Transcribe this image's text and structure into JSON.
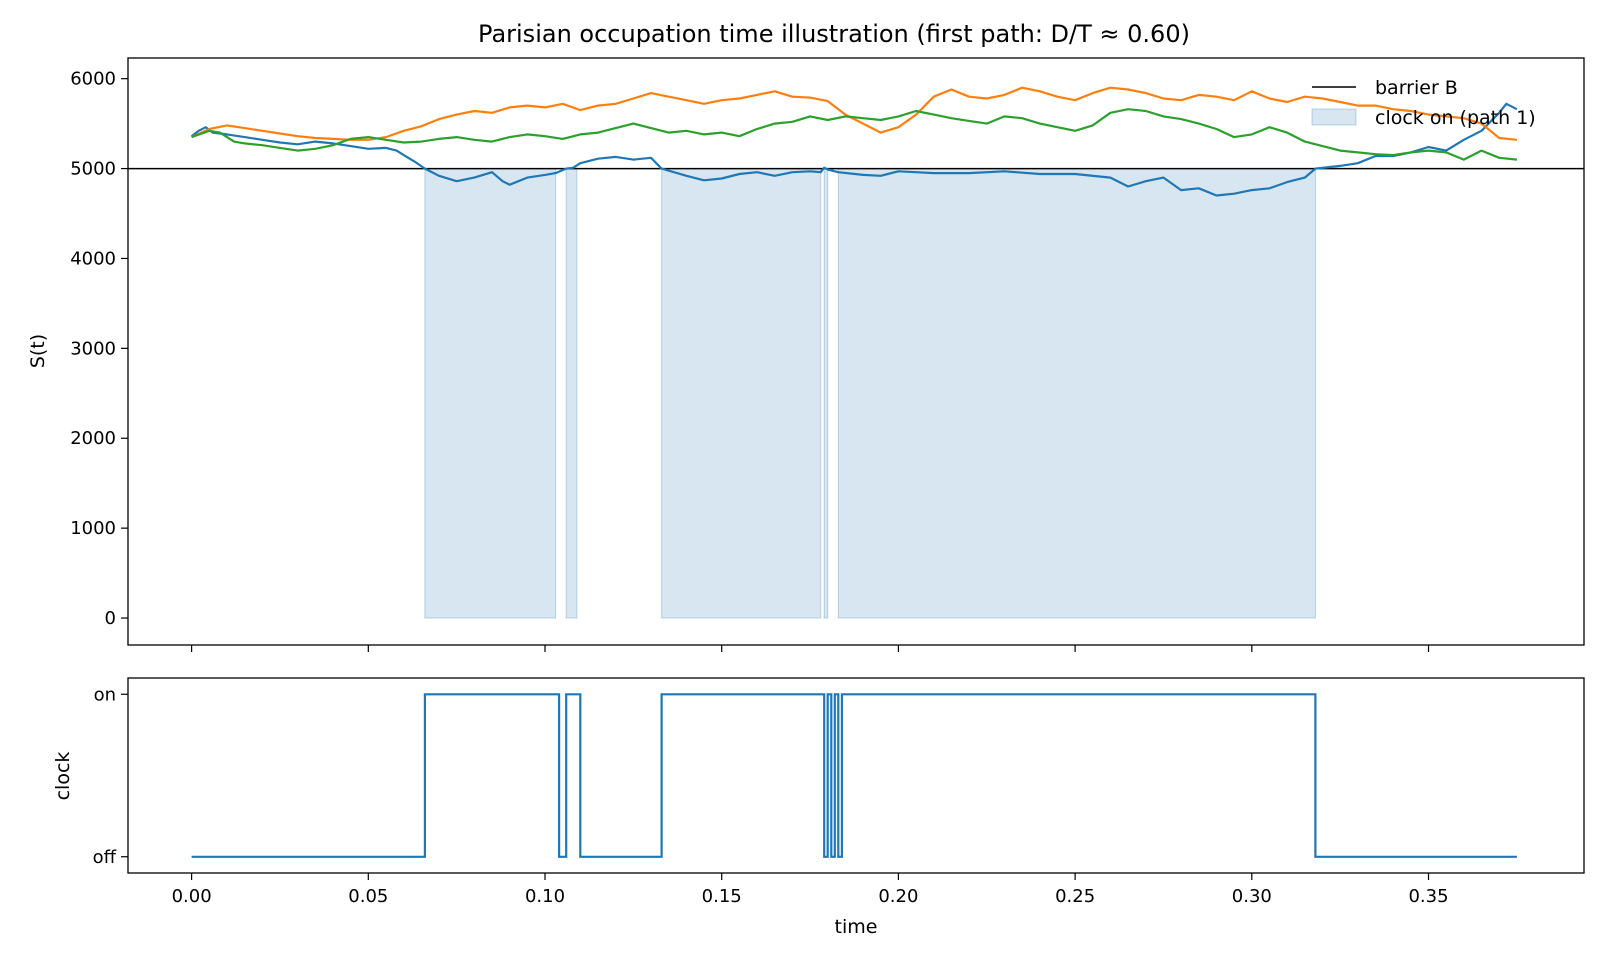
{
  "chart_data": [
    {
      "type": "line",
      "title": "Parisian occupation time illustration  (first path: D/T ≈ 0.60)",
      "xlabel": "",
      "ylabel": "S(t)",
      "xlim": [
        -0.018,
        0.394
      ],
      "ylim": [
        -300,
        6230
      ],
      "xticks": [
        0.0,
        0.05,
        0.1,
        0.15,
        0.2,
        0.25,
        0.3,
        0.35
      ],
      "yticks": [
        0,
        1000,
        2000,
        3000,
        4000,
        5000,
        6000
      ],
      "grid": false,
      "legend": {
        "position": "top-right",
        "entries": [
          {
            "label": "barrier B",
            "kind": "line",
            "color": "#000000"
          },
          {
            "label": "clock on (path 1)",
            "kind": "patch",
            "color": "#1f77b4"
          }
        ]
      },
      "barrier": {
        "label": "barrier B",
        "value": 5000,
        "color": "#000000"
      },
      "clock_on_intervals": [
        [
          0.066,
          0.103
        ],
        [
          0.106,
          0.109
        ],
        [
          0.133,
          0.178
        ],
        [
          0.179,
          0.18
        ],
        [
          0.183,
          0.318
        ]
      ],
      "series": [
        {
          "color": "#1f77b4",
          "points": [
            [
              0.0,
              5360
            ],
            [
              0.002,
              5420
            ],
            [
              0.004,
              5460
            ],
            [
              0.006,
              5400
            ],
            [
              0.01,
              5380
            ],
            [
              0.015,
              5350
            ],
            [
              0.02,
              5320
            ],
            [
              0.025,
              5290
            ],
            [
              0.03,
              5270
            ],
            [
              0.035,
              5300
            ],
            [
              0.04,
              5280
            ],
            [
              0.045,
              5250
            ],
            [
              0.05,
              5220
            ],
            [
              0.055,
              5230
            ],
            [
              0.058,
              5200
            ],
            [
              0.06,
              5150
            ],
            [
              0.063,
              5080
            ],
            [
              0.066,
              5000
            ],
            [
              0.07,
              4920
            ],
            [
              0.075,
              4860
            ],
            [
              0.08,
              4900
            ],
            [
              0.085,
              4960
            ],
            [
              0.088,
              4860
            ],
            [
              0.09,
              4820
            ],
            [
              0.095,
              4900
            ],
            [
              0.1,
              4930
            ],
            [
              0.103,
              4950
            ],
            [
              0.106,
              5000
            ],
            [
              0.108,
              5010
            ],
            [
              0.11,
              5060
            ],
            [
              0.115,
              5110
            ],
            [
              0.12,
              5130
            ],
            [
              0.125,
              5100
            ],
            [
              0.13,
              5120
            ],
            [
              0.133,
              5000
            ],
            [
              0.14,
              4920
            ],
            [
              0.145,
              4870
            ],
            [
              0.15,
              4890
            ],
            [
              0.155,
              4940
            ],
            [
              0.16,
              4960
            ],
            [
              0.165,
              4920
            ],
            [
              0.17,
              4960
            ],
            [
              0.175,
              4970
            ],
            [
              0.178,
              4960
            ],
            [
              0.179,
              5010
            ],
            [
              0.18,
              4990
            ],
            [
              0.183,
              4960
            ],
            [
              0.19,
              4930
            ],
            [
              0.195,
              4920
            ],
            [
              0.2,
              4970
            ],
            [
              0.205,
              4960
            ],
            [
              0.21,
              4950
            ],
            [
              0.22,
              4950
            ],
            [
              0.23,
              4970
            ],
            [
              0.24,
              4940
            ],
            [
              0.25,
              4940
            ],
            [
              0.26,
              4900
            ],
            [
              0.265,
              4800
            ],
            [
              0.27,
              4860
            ],
            [
              0.275,
              4900
            ],
            [
              0.28,
              4760
            ],
            [
              0.285,
              4780
            ],
            [
              0.29,
              4700
            ],
            [
              0.295,
              4720
            ],
            [
              0.3,
              4760
            ],
            [
              0.305,
              4780
            ],
            [
              0.31,
              4850
            ],
            [
              0.315,
              4900
            ],
            [
              0.318,
              5000
            ],
            [
              0.325,
              5030
            ],
            [
              0.33,
              5060
            ],
            [
              0.335,
              5140
            ],
            [
              0.34,
              5140
            ],
            [
              0.345,
              5180
            ],
            [
              0.35,
              5240
            ],
            [
              0.355,
              5200
            ],
            [
              0.36,
              5320
            ],
            [
              0.365,
              5420
            ],
            [
              0.37,
              5620
            ],
            [
              0.372,
              5720
            ],
            [
              0.375,
              5660
            ]
          ]
        },
        {
          "color": "#ff7f0e",
          "points": [
            [
              0.0,
              5350
            ],
            [
              0.005,
              5440
            ],
            [
              0.01,
              5480
            ],
            [
              0.015,
              5450
            ],
            [
              0.02,
              5420
            ],
            [
              0.025,
              5390
            ],
            [
              0.03,
              5360
            ],
            [
              0.035,
              5340
            ],
            [
              0.04,
              5330
            ],
            [
              0.045,
              5320
            ],
            [
              0.05,
              5320
            ],
            [
              0.055,
              5350
            ],
            [
              0.06,
              5420
            ],
            [
              0.065,
              5470
            ],
            [
              0.07,
              5550
            ],
            [
              0.075,
              5600
            ],
            [
              0.08,
              5640
            ],
            [
              0.085,
              5620
            ],
            [
              0.09,
              5680
            ],
            [
              0.095,
              5700
            ],
            [
              0.1,
              5680
            ],
            [
              0.105,
              5720
            ],
            [
              0.11,
              5650
            ],
            [
              0.115,
              5700
            ],
            [
              0.12,
              5720
            ],
            [
              0.125,
              5780
            ],
            [
              0.13,
              5840
            ],
            [
              0.135,
              5800
            ],
            [
              0.14,
              5760
            ],
            [
              0.145,
              5720
            ],
            [
              0.15,
              5760
            ],
            [
              0.155,
              5780
            ],
            [
              0.16,
              5820
            ],
            [
              0.165,
              5860
            ],
            [
              0.17,
              5800
            ],
            [
              0.175,
              5790
            ],
            [
              0.18,
              5750
            ],
            [
              0.185,
              5600
            ],
            [
              0.19,
              5500
            ],
            [
              0.195,
              5400
            ],
            [
              0.2,
              5460
            ],
            [
              0.205,
              5600
            ],
            [
              0.21,
              5800
            ],
            [
              0.215,
              5880
            ],
            [
              0.22,
              5800
            ],
            [
              0.225,
              5780
            ],
            [
              0.23,
              5820
            ],
            [
              0.235,
              5900
            ],
            [
              0.24,
              5860
            ],
            [
              0.245,
              5800
            ],
            [
              0.25,
              5760
            ],
            [
              0.255,
              5840
            ],
            [
              0.26,
              5900
            ],
            [
              0.265,
              5880
            ],
            [
              0.27,
              5840
            ],
            [
              0.275,
              5780
            ],
            [
              0.28,
              5760
            ],
            [
              0.285,
              5820
            ],
            [
              0.29,
              5800
            ],
            [
              0.295,
              5760
            ],
            [
              0.3,
              5860
            ],
            [
              0.305,
              5780
            ],
            [
              0.31,
              5740
            ],
            [
              0.315,
              5800
            ],
            [
              0.32,
              5780
            ],
            [
              0.325,
              5740
            ],
            [
              0.33,
              5700
            ],
            [
              0.335,
              5700
            ],
            [
              0.34,
              5660
            ],
            [
              0.345,
              5640
            ],
            [
              0.35,
              5600
            ],
            [
              0.355,
              5580
            ],
            [
              0.36,
              5560
            ],
            [
              0.365,
              5500
            ],
            [
              0.37,
              5340
            ],
            [
              0.375,
              5320
            ]
          ]
        },
        {
          "color": "#2ca02c",
          "points": [
            [
              0.0,
              5350
            ],
            [
              0.005,
              5420
            ],
            [
              0.008,
              5400
            ],
            [
              0.012,
              5300
            ],
            [
              0.015,
              5280
            ],
            [
              0.02,
              5260
            ],
            [
              0.025,
              5230
            ],
            [
              0.03,
              5200
            ],
            [
              0.035,
              5220
            ],
            [
              0.04,
              5260
            ],
            [
              0.045,
              5330
            ],
            [
              0.05,
              5350
            ],
            [
              0.055,
              5320
            ],
            [
              0.06,
              5290
            ],
            [
              0.065,
              5300
            ],
            [
              0.07,
              5330
            ],
            [
              0.075,
              5350
            ],
            [
              0.08,
              5320
            ],
            [
              0.085,
              5300
            ],
            [
              0.09,
              5350
            ],
            [
              0.095,
              5380
            ],
            [
              0.1,
              5360
            ],
            [
              0.105,
              5330
            ],
            [
              0.11,
              5380
            ],
            [
              0.115,
              5400
            ],
            [
              0.12,
              5450
            ],
            [
              0.125,
              5500
            ],
            [
              0.13,
              5450
            ],
            [
              0.135,
              5400
            ],
            [
              0.14,
              5420
            ],
            [
              0.145,
              5380
            ],
            [
              0.15,
              5400
            ],
            [
              0.155,
              5360
            ],
            [
              0.16,
              5440
            ],
            [
              0.165,
              5500
            ],
            [
              0.17,
              5520
            ],
            [
              0.175,
              5580
            ],
            [
              0.18,
              5540
            ],
            [
              0.185,
              5580
            ],
            [
              0.19,
              5560
            ],
            [
              0.195,
              5540
            ],
            [
              0.2,
              5580
            ],
            [
              0.205,
              5640
            ],
            [
              0.21,
              5600
            ],
            [
              0.215,
              5560
            ],
            [
              0.22,
              5530
            ],
            [
              0.225,
              5500
            ],
            [
              0.23,
              5580
            ],
            [
              0.235,
              5560
            ],
            [
              0.24,
              5500
            ],
            [
              0.245,
              5460
            ],
            [
              0.25,
              5420
            ],
            [
              0.255,
              5480
            ],
            [
              0.26,
              5620
            ],
            [
              0.265,
              5660
            ],
            [
              0.27,
              5640
            ],
            [
              0.275,
              5580
            ],
            [
              0.28,
              5550
            ],
            [
              0.285,
              5500
            ],
            [
              0.29,
              5440
            ],
            [
              0.295,
              5350
            ],
            [
              0.3,
              5380
            ],
            [
              0.305,
              5460
            ],
            [
              0.31,
              5400
            ],
            [
              0.315,
              5300
            ],
            [
              0.32,
              5250
            ],
            [
              0.325,
              5200
            ],
            [
              0.33,
              5180
            ],
            [
              0.335,
              5160
            ],
            [
              0.34,
              5150
            ],
            [
              0.345,
              5180
            ],
            [
              0.35,
              5200
            ],
            [
              0.355,
              5180
            ],
            [
              0.36,
              5100
            ],
            [
              0.365,
              5200
            ],
            [
              0.37,
              5120
            ],
            [
              0.375,
              5100
            ]
          ]
        }
      ]
    },
    {
      "type": "line",
      "title": "",
      "xlabel": "time",
      "ylabel": "clock",
      "xlim": [
        -0.018,
        0.394
      ],
      "ylim": [
        -0.1,
        1.1
      ],
      "xticks": [
        0.0,
        0.05,
        0.1,
        0.15,
        0.2,
        0.25,
        0.3,
        0.35
      ],
      "xtick_labels": [
        "0.00",
        "0.05",
        "0.10",
        "0.15",
        "0.20",
        "0.25",
        "0.30",
        "0.35"
      ],
      "yticks": [
        0,
        1
      ],
      "ytick_labels": [
        "off",
        "on"
      ],
      "grid": false,
      "series": [
        {
          "color": "#1f77b4",
          "step": [
            [
              0.0,
              0
            ],
            [
              0.066,
              1
            ],
            [
              0.104,
              0
            ],
            [
              0.106,
              1
            ],
            [
              0.11,
              0
            ],
            [
              0.133,
              1
            ],
            [
              0.179,
              0
            ],
            [
              0.18,
              1
            ],
            [
              0.181,
              0
            ],
            [
              0.182,
              1
            ],
            [
              0.183,
              0
            ],
            [
              0.184,
              1
            ],
            [
              0.318,
              0
            ],
            [
              0.375,
              0
            ]
          ]
        }
      ]
    }
  ]
}
